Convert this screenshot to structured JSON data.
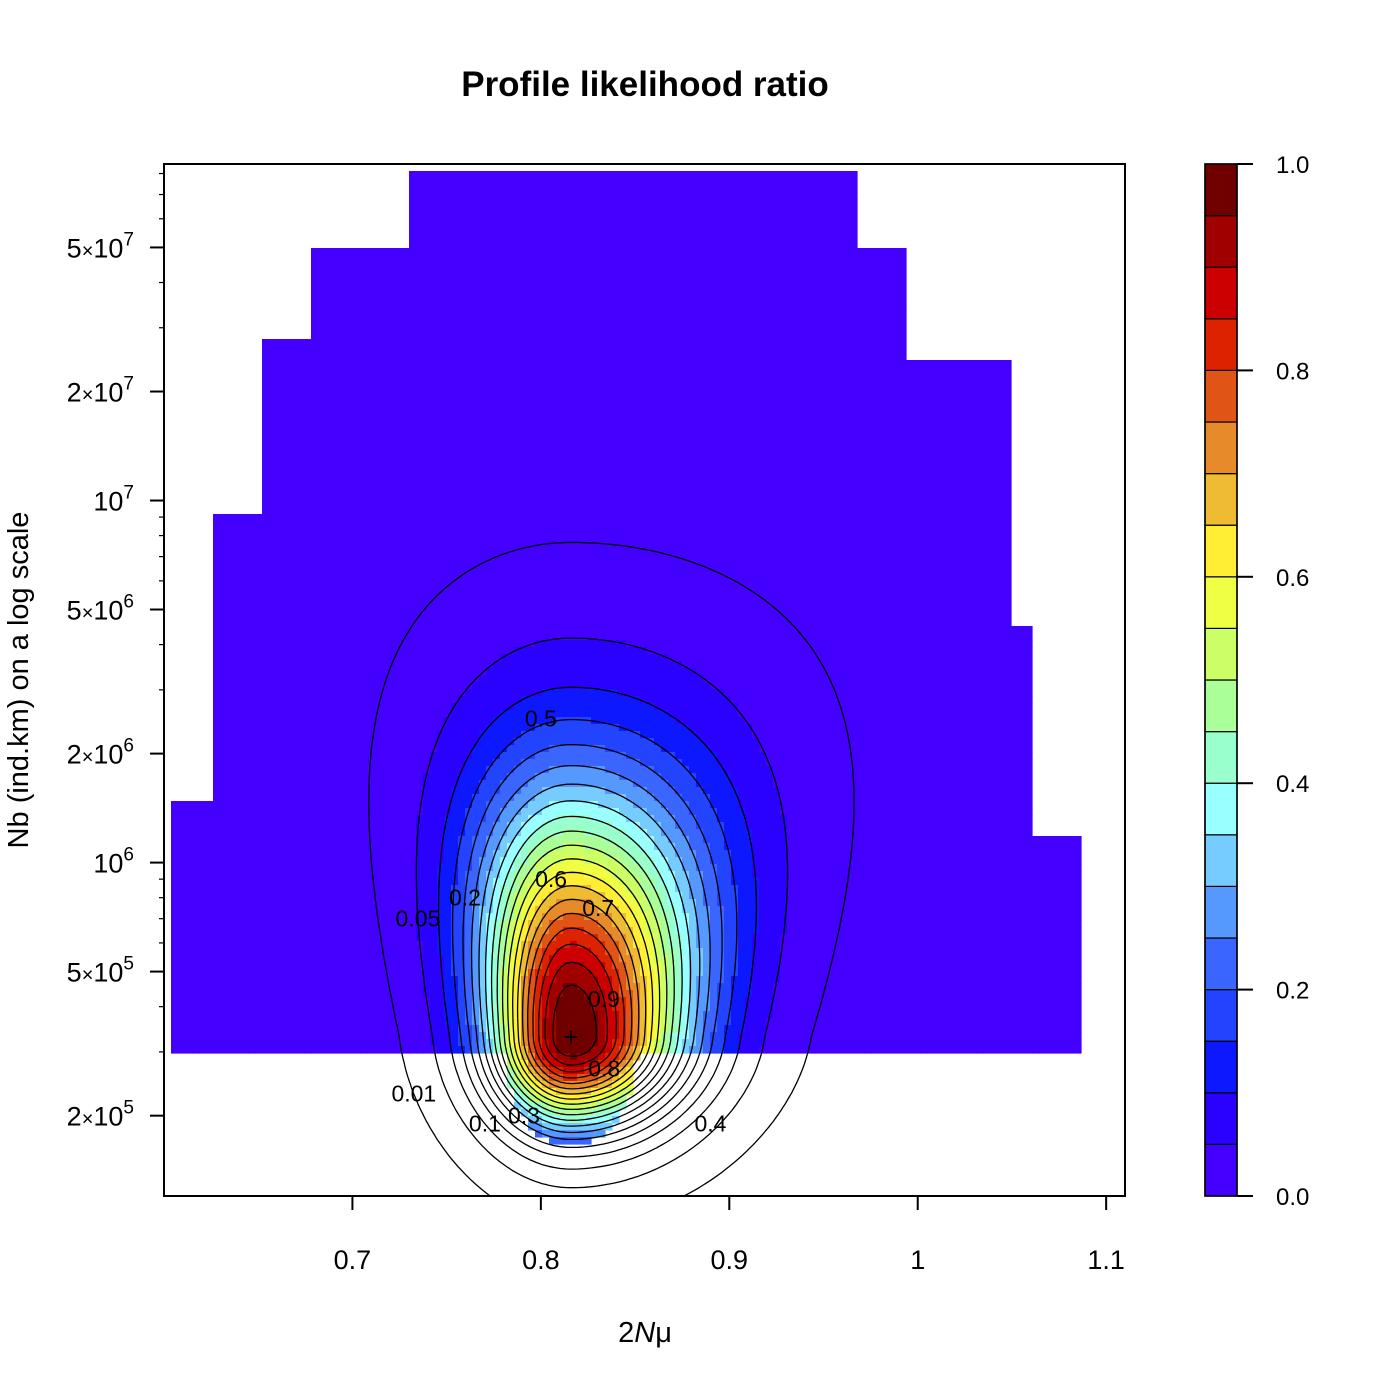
{
  "chart_data": {
    "type": "heatmap",
    "subtype": "filled-contour",
    "title": "Profile likelihood ratio",
    "xlabel_pre": "2",
    "xlabel_var": "N",
    "xlabel_post": "μ",
    "ylabel": "Nb (ind.km) on a log scale",
    "x_scale": "linear",
    "y_scale": "log",
    "xlim": [
      0.6,
      1.11
    ],
    "ylim": [
      120000,
      85000000
    ],
    "x_ticks": [
      0.7,
      0.8,
      0.9,
      1.0,
      1.1
    ],
    "x_tick_labels": [
      "0.7",
      "0.8",
      "0.9",
      "1",
      "1.1"
    ],
    "y_ticks": [
      {
        "value": 200000,
        "mant": "2",
        "exp": "5"
      },
      {
        "value": 500000,
        "mant": "5",
        "exp": "5"
      },
      {
        "value": 1000000,
        "mant": "",
        "exp": "6"
      },
      {
        "value": 2000000,
        "mant": "2",
        "exp": "6"
      },
      {
        "value": 5000000,
        "mant": "5",
        "exp": "6"
      },
      {
        "value": 10000000,
        "mant": "",
        "exp": "7"
      },
      {
        "value": 20000000,
        "mant": "2",
        "exp": "7"
      },
      {
        "value": 50000000,
        "mant": "5",
        "exp": "7"
      }
    ],
    "maximum": {
      "x": 0.816,
      "y": 330000,
      "marker": "+"
    },
    "levels": [
      0.0,
      0.05,
      0.1,
      0.15,
      0.2,
      0.25,
      0.3,
      0.35,
      0.4,
      0.45,
      0.5,
      0.55,
      0.6,
      0.65,
      0.7,
      0.75,
      0.8,
      0.85,
      0.9,
      0.95,
      1.0
    ],
    "colors": [
      "#4400ff",
      "#2a00ff",
      "#0e18ff",
      "#2244ff",
      "#3a66ff",
      "#5599ff",
      "#77ccff",
      "#99ffff",
      "#99ffcc",
      "#aaff99",
      "#ccff66",
      "#eeff44",
      "#ffee33",
      "#eebb33",
      "#e68a2a",
      "#e05515",
      "#dd2200",
      "#cc0000",
      "#a00000",
      "#700000"
    ],
    "colorbar_ticks": [
      {
        "value": 0.0,
        "label": "0.0"
      },
      {
        "value": 0.2,
        "label": "0.2"
      },
      {
        "value": 0.4,
        "label": "0.4"
      },
      {
        "value": 0.6,
        "label": "0.6"
      },
      {
        "value": 0.8,
        "label": "0.8"
      },
      {
        "value": 1.0,
        "label": "1.0"
      }
    ],
    "contour_labels": [
      "0.01",
      "0.05",
      "0.1",
      "0.2",
      "0.3",
      "0.4",
      "0.5",
      "0.6",
      "0.7",
      "0.8",
      "0.9"
    ],
    "grid": false,
    "legend": "colorbar-right"
  }
}
